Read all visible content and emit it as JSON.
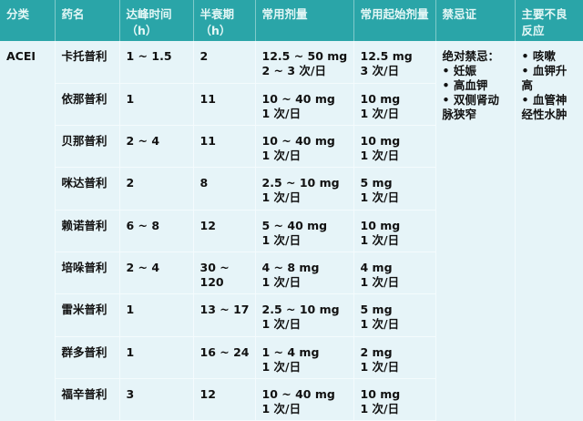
{
  "headers": [
    "分类",
    "药名",
    "达峰时间（h）",
    "半衰期（h）",
    "常用剂量",
    "常用起始剂量",
    "禁忌证",
    "主要不良反应"
  ],
  "category": "ACEI",
  "rows": [
    {
      "name": "卡托普利",
      "peak": "1 ~ 1.5",
      "half": "2",
      "dose": "12.5 ~ 50 mg",
      "dose_freq": "2 ~ 3 次/日",
      "start": "12.5 mg",
      "start_freq": "3 次/日"
    },
    {
      "name": "依那普利",
      "peak": "1",
      "half": "11",
      "dose": "10 ~ 40 mg",
      "dose_freq": "1 次/日",
      "start": "10 mg",
      "start_freq": "1 次/日"
    },
    {
      "name": "贝那普利",
      "peak": "2 ~ 4",
      "half": "11",
      "dose": "10 ~ 40 mg",
      "dose_freq": "1 次/日",
      "start": "10 mg",
      "start_freq": "1 次/日"
    },
    {
      "name": "咪达普利",
      "peak": "2",
      "half": "8",
      "dose": "2.5 ~ 10 mg",
      "dose_freq": "1 次/日",
      "start": "5 mg",
      "start_freq": "1 次/日"
    },
    {
      "name": "赖诺普利",
      "peak": "6 ~ 8",
      "half": "12",
      "dose": "5 ~ 40 mg",
      "dose_freq": "1 次/日",
      "start": "10 mg",
      "start_freq": "1 次/日"
    },
    {
      "name": "培哚普利",
      "peak": "2 ~ 4",
      "half": "30 ~ 120",
      "dose": "4 ~ 8 mg",
      "dose_freq": "1 次/日",
      "start": "4 mg",
      "start_freq": "1 次/日"
    },
    {
      "name": "雷米普利",
      "peak": "1",
      "half": "13 ~ 17",
      "dose": "2.5 ~ 10 mg",
      "dose_freq": "1 次/日",
      "start": "5 mg",
      "start_freq": "1 次/日"
    },
    {
      "name": "群多普利",
      "peak": "1",
      "half": "16 ~ 24",
      "dose": "1 ~ 4 mg",
      "dose_freq": "1 次/日",
      "start": "2 mg",
      "start_freq": "1 次/日"
    },
    {
      "name": "福辛普利",
      "peak": "3",
      "half": "12",
      "dose": "10 ~ 40 mg",
      "dose_freq": "1 次/日",
      "start": "10 mg",
      "start_freq": "1 次/日"
    }
  ],
  "contraindications": [
    "绝对禁忌：",
    "• 妊娠",
    "• 高血钾",
    "• 双侧肾动脉狭窄"
  ],
  "adverse": [
    "• 咳嗽",
    "• 血钾升高",
    "• 血管神经性水肿"
  ]
}
